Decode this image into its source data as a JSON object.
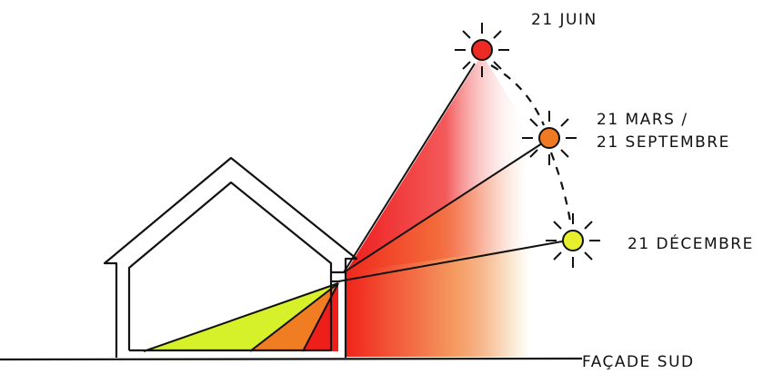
{
  "suns": [
    {
      "id": "june",
      "label": "21 JUIN",
      "color": "#ee2a24"
    },
    {
      "id": "equinox",
      "label_line1": "21 MARS /",
      "label_line2": "21 SEPTEMBRE",
      "color": "#f07a24"
    },
    {
      "id": "december",
      "label": "21 DÉCEMBRE",
      "color": "#e6f02c"
    }
  ],
  "facade_label": "FAÇADE SUD"
}
